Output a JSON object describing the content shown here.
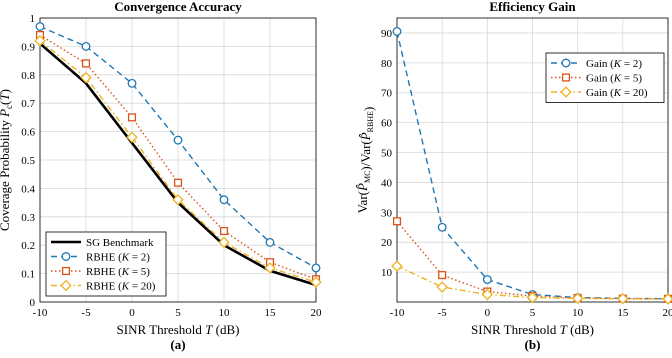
{
  "chart_data": [
    {
      "type": "line",
      "title": "Convergence Accuracy",
      "xlabel": "SINR Threshold T (dB)",
      "ylabel": "Coverage Probability P_c(T)",
      "subcaption": "(a)",
      "x": [
        -10,
        -5,
        0,
        5,
        10,
        15,
        20
      ],
      "xlim": [
        -10,
        20
      ],
      "ylim": [
        0,
        1
      ],
      "xticks": [
        "-10",
        "-5",
        "0",
        "5",
        "10",
        "15",
        "20"
      ],
      "yticks": [
        "0",
        "0.1",
        "0.2",
        "0.3",
        "0.4",
        "0.5",
        "0.6",
        "0.7",
        "0.8",
        "0.9",
        "1"
      ],
      "grid": true,
      "legend_position": "bottom-left",
      "series": [
        {
          "name": "SG Benchmark",
          "color": "#000000",
          "style": "solid",
          "marker": "none",
          "values": [
            0.91,
            0.77,
            0.56,
            0.35,
            0.2,
            0.11,
            0.06
          ]
        },
        {
          "name": "RBHE (K = 2)",
          "color": "#1f77b4",
          "style": "dashed",
          "marker": "circle",
          "values": [
            0.97,
            0.9,
            0.77,
            0.57,
            0.36,
            0.21,
            0.12
          ]
        },
        {
          "name": "RBHE (K = 5)",
          "color": "#d95319",
          "style": "dotted",
          "marker": "square",
          "values": [
            0.94,
            0.84,
            0.65,
            0.42,
            0.25,
            0.14,
            0.08
          ]
        },
        {
          "name": "RBHE (K = 20)",
          "color": "#edb120",
          "style": "dashdot",
          "marker": "diamond",
          "values": [
            0.92,
            0.79,
            0.58,
            0.36,
            0.21,
            0.12,
            0.07
          ]
        }
      ]
    },
    {
      "type": "line",
      "title": "Efficiency Gain",
      "xlabel": "SINR Threshold T (dB)",
      "ylabel": "Var(P̂_MC)/Var(P̂_RBHE)",
      "subcaption": "(b)",
      "x": [
        -10,
        -5,
        0,
        5,
        10,
        15,
        20
      ],
      "xlim": [
        -10,
        20
      ],
      "ylim": [
        0,
        95
      ],
      "xticks": [
        "-10",
        "-5",
        "0",
        "5",
        "10",
        "15",
        "20"
      ],
      "yticks": [
        "10",
        "20",
        "30",
        "40",
        "50",
        "60",
        "70",
        "80",
        "90"
      ],
      "grid": true,
      "legend_position": "top-right",
      "series": [
        {
          "name": "Gain (K = 2)",
          "color": "#1f77b4",
          "style": "dashed",
          "marker": "circle",
          "values": [
            90.5,
            25,
            7.5,
            2.5,
            1.5,
            1.2,
            1.1
          ]
        },
        {
          "name": "Gain (K = 5)",
          "color": "#d95319",
          "style": "dotted",
          "marker": "square",
          "values": [
            27,
            9,
            3.5,
            2,
            1.3,
            1.1,
            1.05
          ]
        },
        {
          "name": "Gain (K = 20)",
          "color": "#edb120",
          "style": "dashdot",
          "marker": "diamond",
          "values": [
            12,
            5,
            2.5,
            1.5,
            1.2,
            1.1,
            1.0
          ]
        }
      ]
    }
  ]
}
